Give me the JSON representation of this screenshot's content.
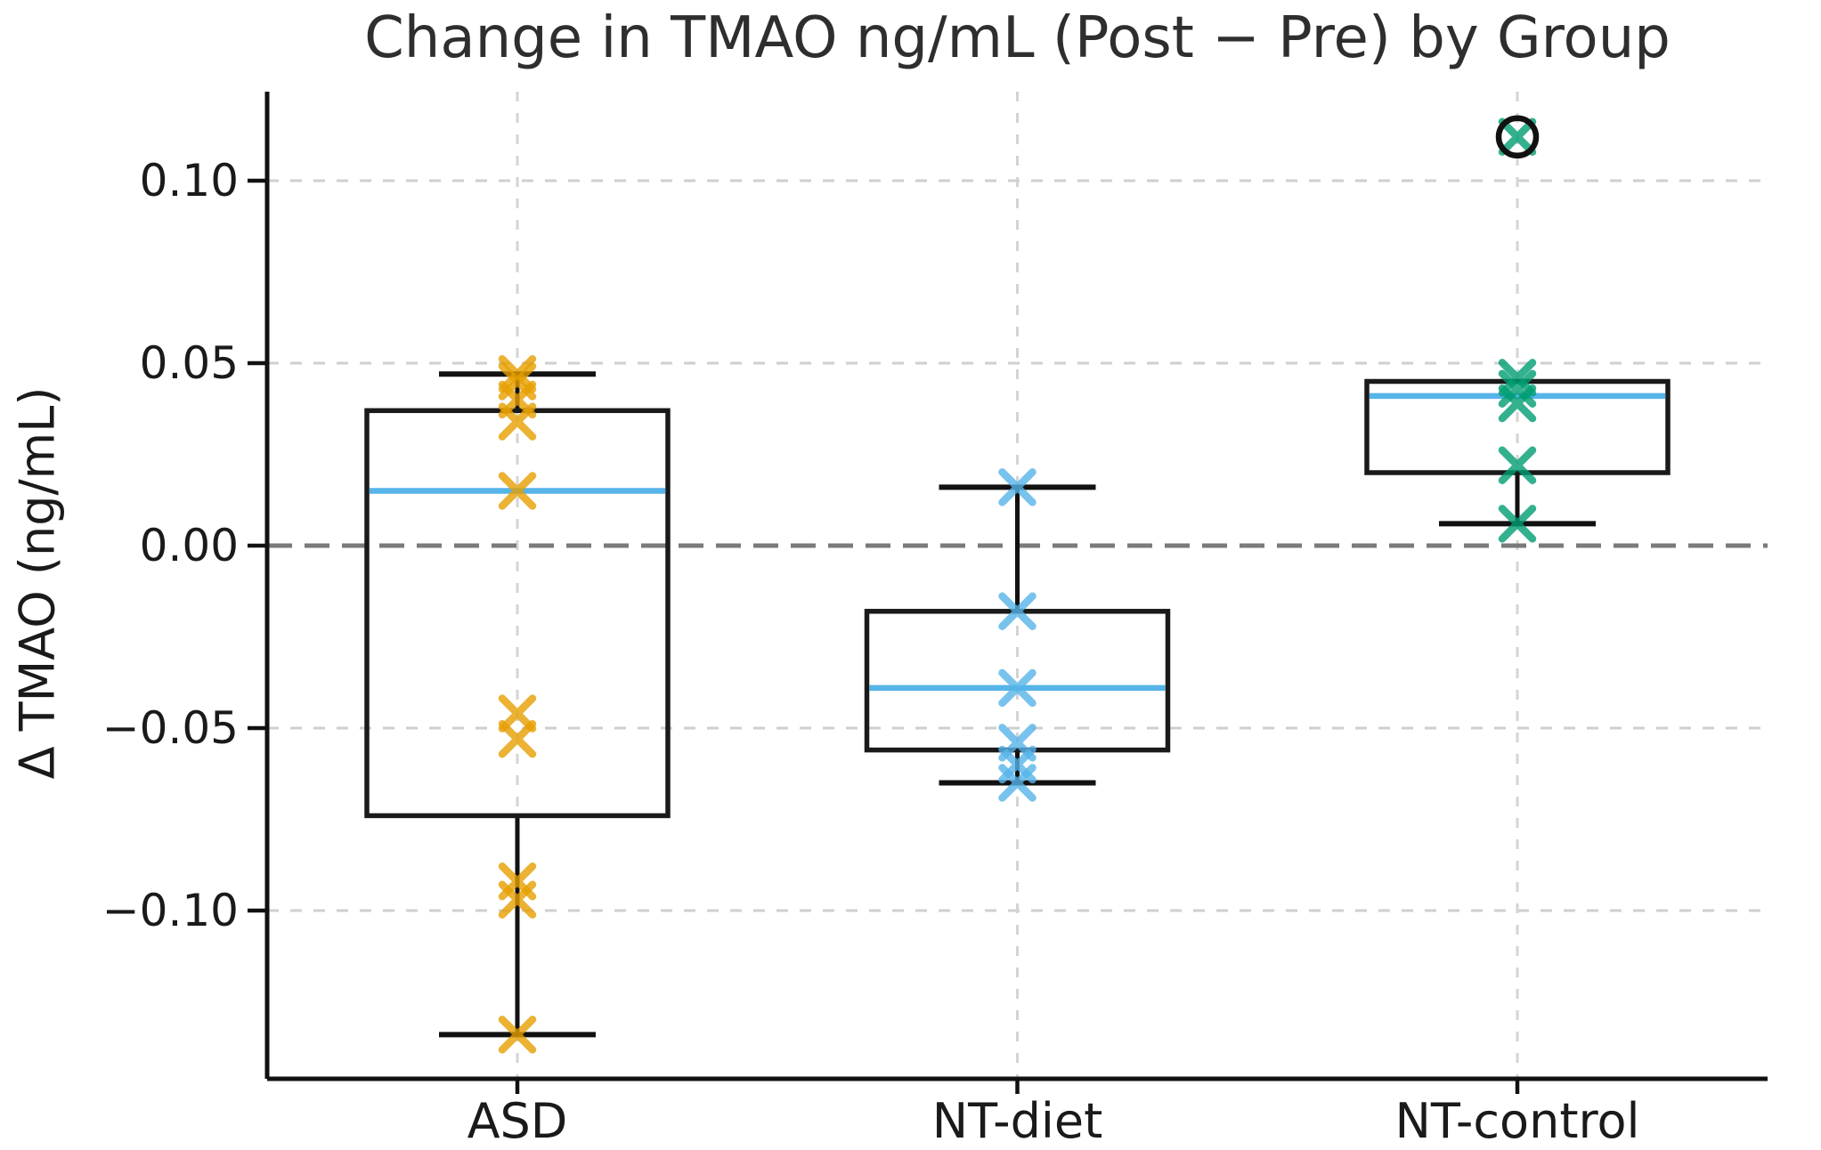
{
  "title": "Change in TMAO ng/mL (Post − Pre) by Group",
  "ylabel": "Δ TMAO (ng/mL)",
  "colors": {
    "box_edge": "#1a1a1a",
    "whisker": "#111111",
    "median_line": "#56B4E9",
    "grid": "#cfcfcf",
    "group_guide": "#d4d4d4",
    "zero_line": "#7a7a7a",
    "tick_text": "#1a1a1a",
    "outlier_ring": "#111111"
  },
  "chart_data": {
    "type": "box",
    "title": "Change in TMAO ng/mL (Post − Pre) by Group",
    "ylabel": "Δ TMAO (ng/mL)",
    "categories": [
      "ASD",
      "NT-diet",
      "NT-control"
    ],
    "yticks": [
      0.1,
      0.05,
      0.0,
      -0.05,
      -0.1
    ],
    "ytick_labels": [
      "0.10",
      "0.05",
      "0.00",
      "−0.05",
      "−0.10"
    ],
    "ylim": [
      -0.146,
      0.124
    ],
    "grid": true,
    "zero_line": 0.0,
    "groups": [
      {
        "label": "ASD",
        "marker_color": "#E69F00",
        "q1": -0.074,
        "median": 0.015,
        "q3": 0.037,
        "whisker_low": -0.134,
        "whisker_high": 0.047,
        "points": [
          0.047,
          0.045,
          0.04,
          0.034,
          0.015,
          -0.046,
          -0.053,
          -0.092,
          -0.097,
          -0.134
        ],
        "outliers": []
      },
      {
        "label": "NT-diet",
        "marker_color": "#56B4E9",
        "q1": -0.056,
        "median": -0.039,
        "q3": -0.018,
        "whisker_low": -0.065,
        "whisker_high": 0.016,
        "points": [
          0.016,
          -0.018,
          -0.039,
          -0.054,
          -0.06,
          -0.065
        ],
        "outliers": []
      },
      {
        "label": "NT-control",
        "marker_color": "#009E73",
        "q1": 0.02,
        "median": 0.041,
        "q3": 0.045,
        "whisker_low": 0.006,
        "whisker_high": 0.045,
        "points": [
          0.112,
          0.046,
          0.043,
          0.039,
          0.022,
          0.006
        ],
        "outliers": [
          0.112
        ]
      }
    ]
  }
}
